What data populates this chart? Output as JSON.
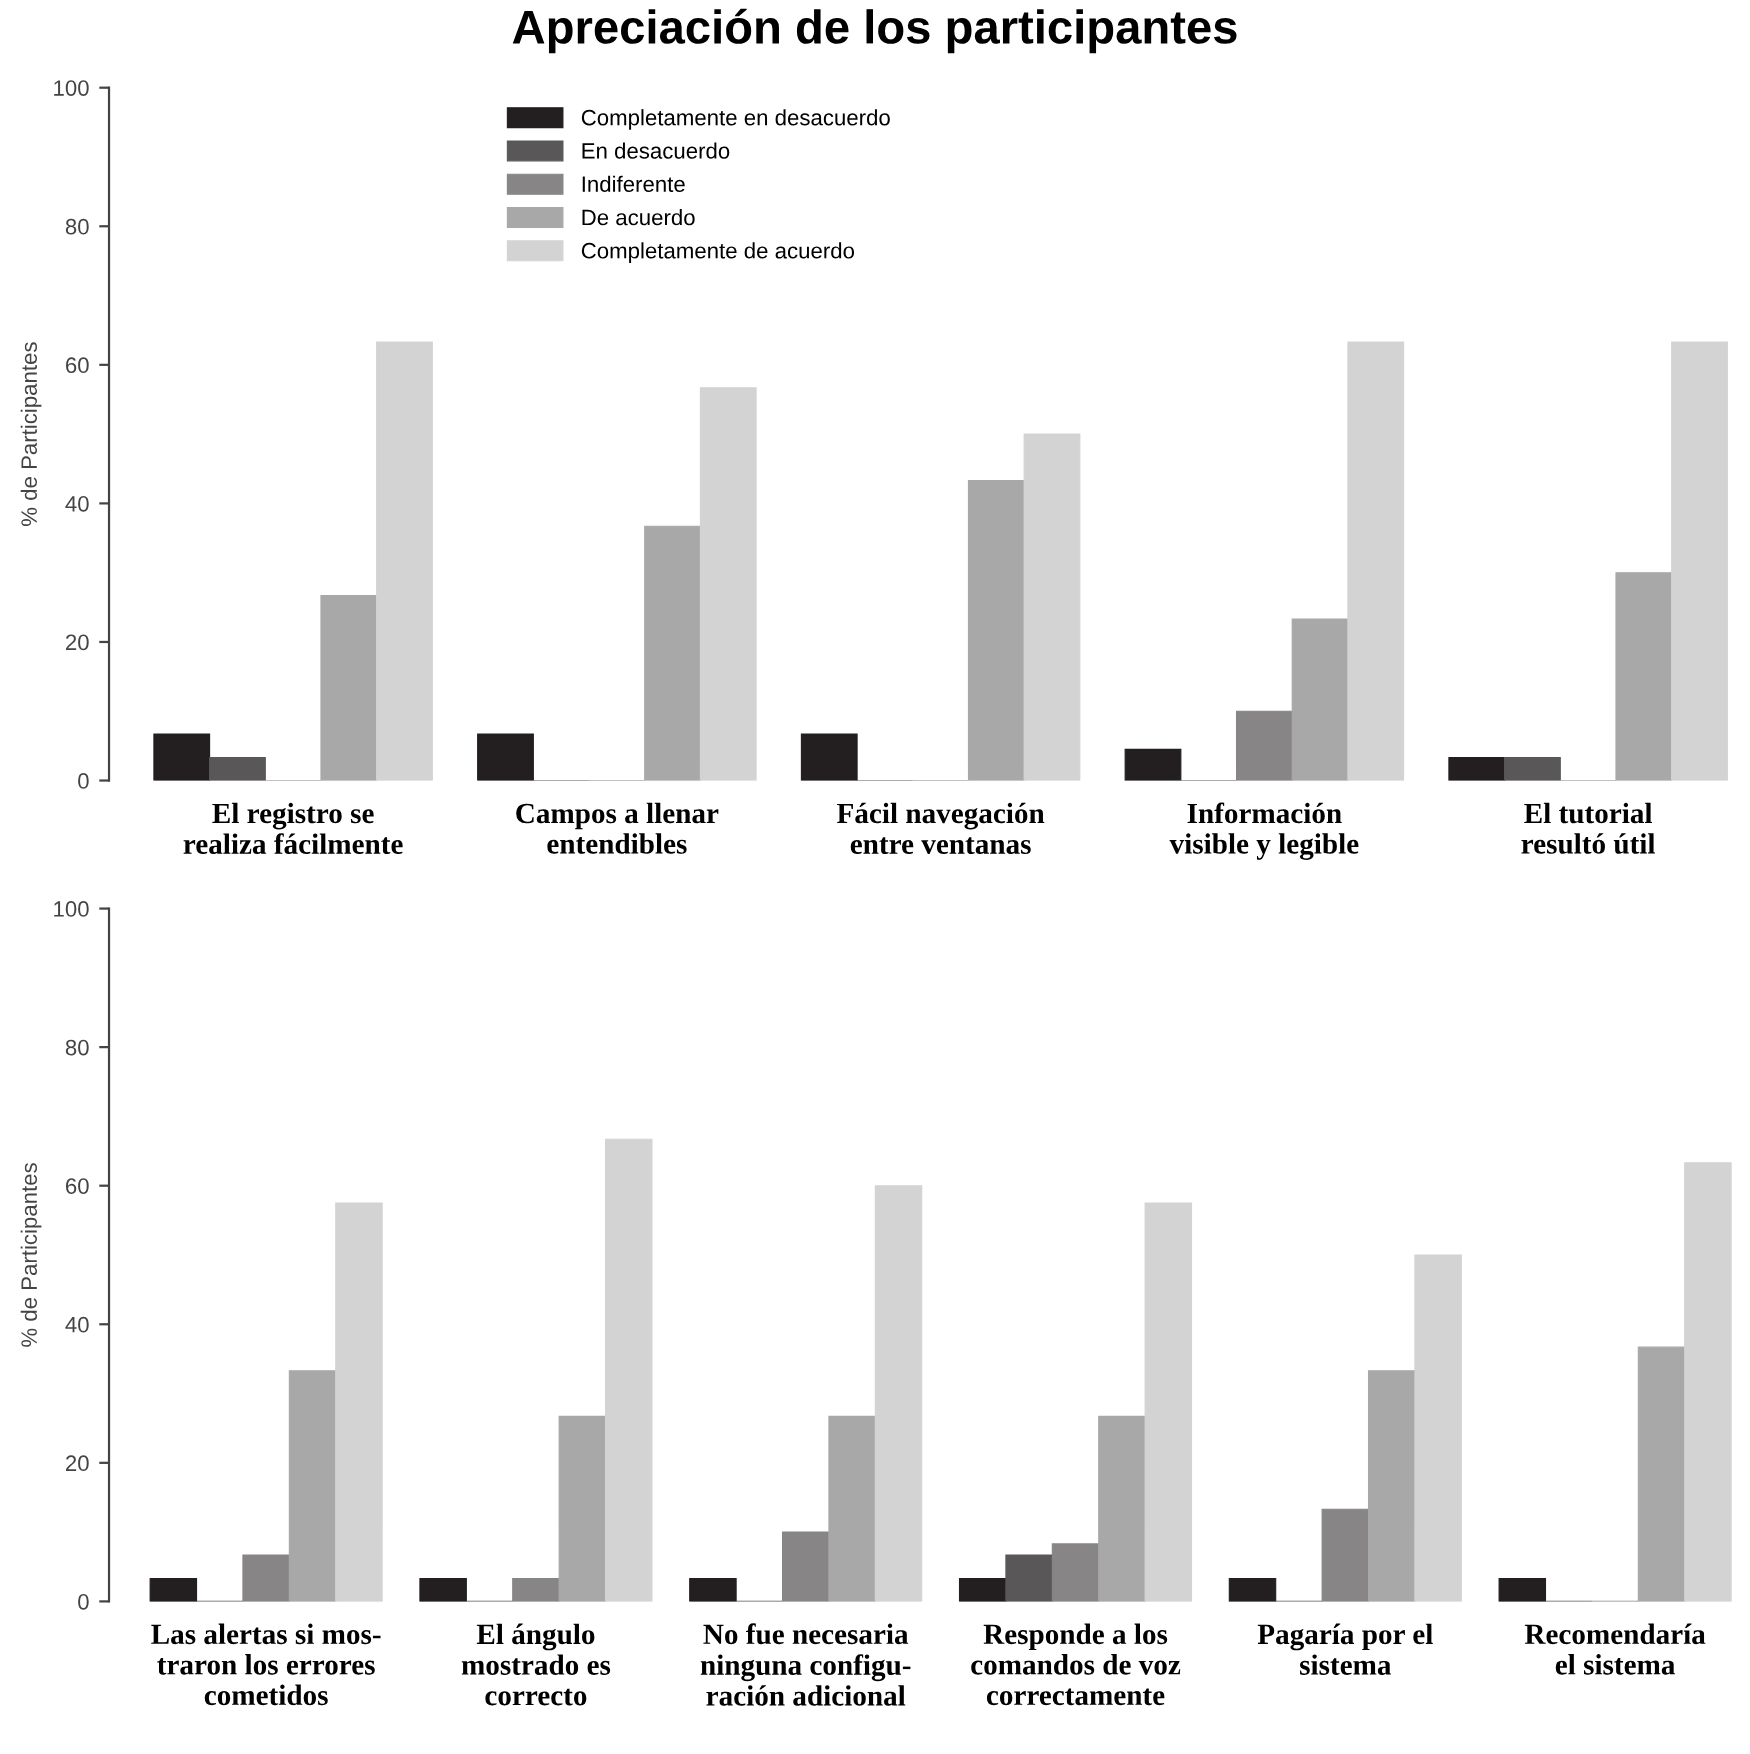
{
  "chart_data": [
    {
      "type": "bar",
      "title": "Apreciación de los participantes",
      "ylabel": "% de Participantes",
      "ylim": [
        0,
        100
      ],
      "yticks": [
        0,
        20,
        40,
        60,
        80,
        100
      ],
      "grid": false,
      "legend": "top left",
      "categories": [
        "El registro se\nrealiza fácilmente",
        "Campos a llenar\nentendibles",
        "Fácil navegación\nentre ventanas",
        "Información\nvisible y legible",
        "El tutorial\nresultó útil"
      ],
      "series": [
        {
          "name": "Completamente en desacuerdo",
          "color": "#231f20",
          "values": [
            6.7,
            6.7,
            6.7,
            4.5,
            3.3
          ]
        },
        {
          "name": "En desacuerdo",
          "color": "#5a5758",
          "values": [
            3.3,
            0,
            0,
            0,
            3.3
          ]
        },
        {
          "name": "Indiferente",
          "color": "#878586",
          "values": [
            0,
            0,
            0,
            10,
            0
          ]
        },
        {
          "name": "De acuerdo",
          "color": "#a9a8a9",
          "values": [
            26.7,
            36.7,
            43.3,
            23.3,
            30
          ]
        },
        {
          "name": "Completamente de acuerdo",
          "color": "#d4d3d4",
          "values": [
            63.3,
            56.7,
            50,
            63.3,
            63.3
          ]
        }
      ]
    },
    {
      "type": "bar",
      "ylabel": "% de Participantes",
      "ylim": [
        0,
        100
      ],
      "yticks": [
        0,
        20,
        40,
        60,
        80,
        100
      ],
      "grid": false,
      "legend": false,
      "categories": [
        "Las alertas si mos-\ntraron los errores\ncometidos",
        "El ángulo\nmostrado es\ncorrecto",
        "No fue necesaria\nninguna configu-\nración adicional",
        "Responde a los\ncomandos de voz\ncorrectamente",
        "Pagaría por el\nsistema",
        "Recomendaría\nel sistema"
      ],
      "series": [
        {
          "color": "#231f20",
          "values": [
            3.3,
            3.3,
            3.3,
            3.3,
            3.3,
            3.3
          ]
        },
        {
          "color": "#5a5758",
          "values": [
            0,
            0,
            0,
            6.7,
            0,
            0
          ]
        },
        {
          "color": "#878586",
          "values": [
            6.7,
            3.3,
            10,
            8.3,
            13.3,
            0
          ]
        },
        {
          "color": "#a9a8a9",
          "values": [
            33.3,
            26.7,
            26.7,
            26.7,
            33.3,
            36.7
          ]
        },
        {
          "color": "#d4d3d4",
          "values": [
            57.5,
            66.7,
            60,
            57.5,
            50,
            63.3
          ]
        }
      ]
    }
  ]
}
